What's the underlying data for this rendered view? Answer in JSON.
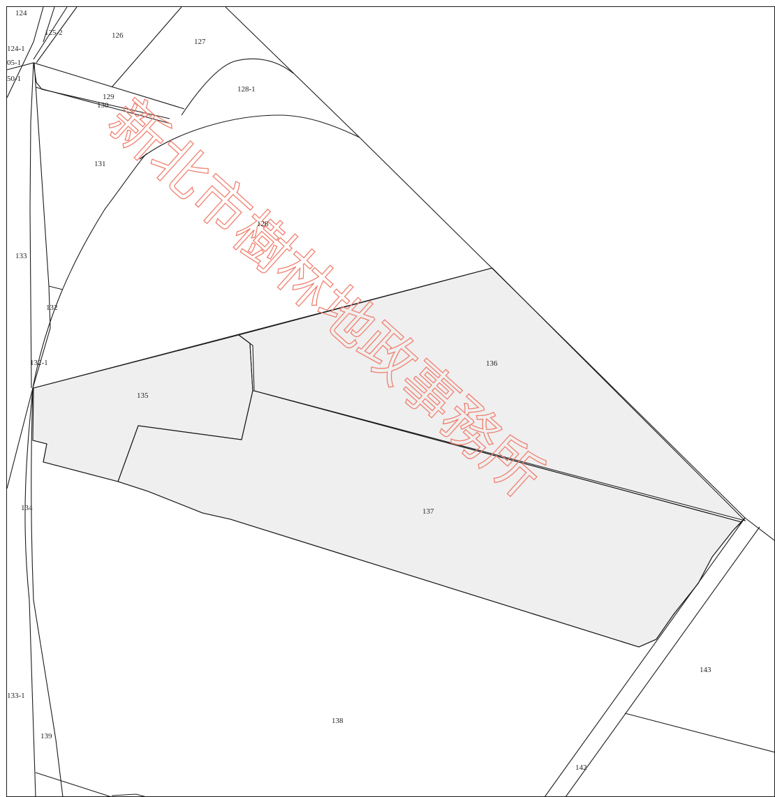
{
  "watermark": {
    "text": "新北市樹林地政事務所",
    "color": "#f08070"
  },
  "highlight_color": "#efefef",
  "line_color": "#1a1a1a",
  "parcels": {
    "p124": "124",
    "p125_2": "125-2",
    "p126": "126",
    "p127": "127",
    "p124_1": "124-1",
    "p05_1": "05-1",
    "p50_1": "50-1",
    "p128_1": "128-1",
    "p129": "129",
    "p130": "130",
    "p131": "131",
    "p128": "128",
    "p133": "133",
    "p132": "132",
    "p132_1": "132-1",
    "p136": "136",
    "p135": "135",
    "p134": "134",
    "p137": "137",
    "p143": "143",
    "p133_1": "133-1",
    "p138": "138",
    "p139": "139",
    "p142": "142"
  }
}
